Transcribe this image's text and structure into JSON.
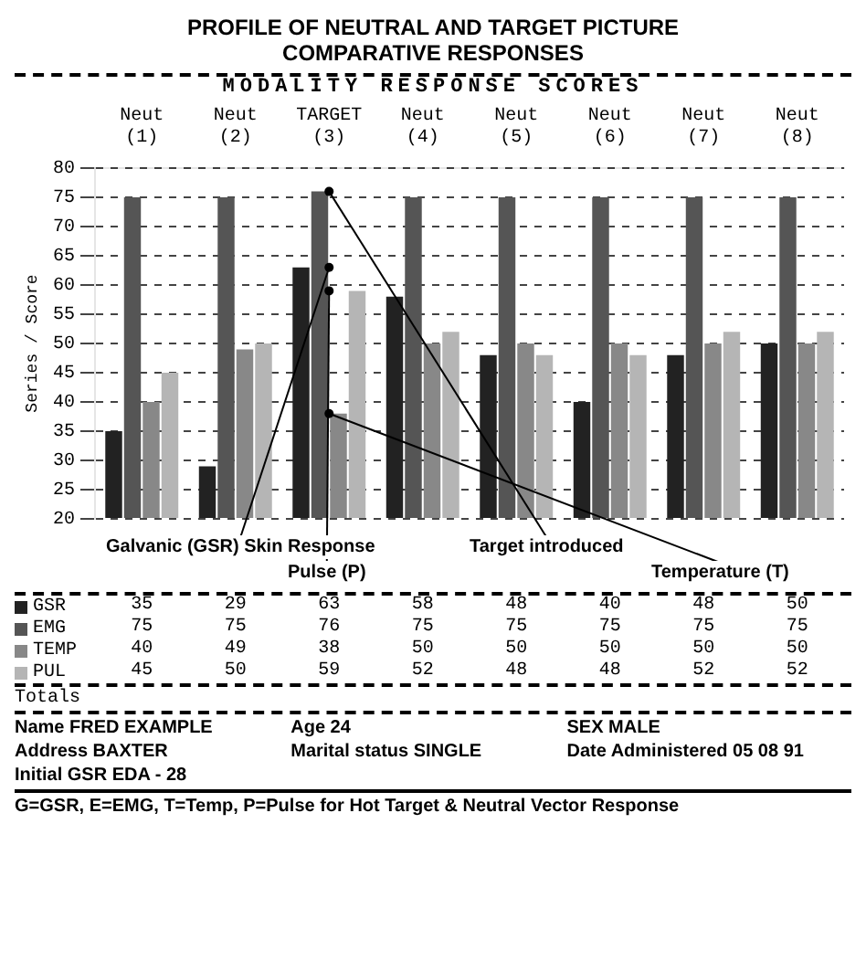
{
  "chart_data": {
    "type": "bar",
    "title": "PROFILE OF NEUTRAL AND TARGET PICTURE COMPARATIVE RESPONSES",
    "subtitle": "MODALITY RESPONSE SCORES",
    "ylabel": "Series / Score",
    "categories": [
      "Neut (1)",
      "Neut (2)",
      "TARGET (3)",
      "Neut (4)",
      "Neut (5)",
      "Neut (6)",
      "Neut (7)",
      "Neut (8)"
    ],
    "series": [
      {
        "name": "GSR",
        "color": "#222222",
        "values": [
          35,
          29,
          63,
          58,
          48,
          40,
          48,
          50
        ]
      },
      {
        "name": "EMG",
        "color": "#555555",
        "values": [
          75,
          75,
          76,
          75,
          75,
          75,
          75,
          75
        ]
      },
      {
        "name": "TEMP",
        "color": "#888888",
        "values": [
          40,
          49,
          38,
          50,
          50,
          50,
          50,
          50
        ]
      },
      {
        "name": "PUL",
        "color": "#b5b5b5",
        "values": [
          45,
          50,
          59,
          52,
          48,
          48,
          52,
          52
        ]
      }
    ],
    "ylim": [
      20,
      80
    ],
    "yticks": [
      20,
      25,
      30,
      35,
      40,
      45,
      50,
      55,
      60,
      65,
      70,
      75,
      80
    ],
    "grid": "y",
    "data_labels": true,
    "legend": "bottom left",
    "annotations": [
      {
        "text": "Galvanic (GSR) Skin Response",
        "x": "TARGET (3)",
        "y": 63
      },
      {
        "text": "Pulse (P)",
        "x": "TARGET (3)",
        "y": 59
      },
      {
        "text": "Target introduced",
        "x": "TARGET (3)",
        "y": 76
      },
      {
        "text": "Temperature (T)",
        "x": "TARGET (3)",
        "y": 38
      },
      "Totals",
      "Name FRED EXAMPLE",
      "Age 24",
      "SEX MALE",
      "Address BAXTER",
      "Marital status SINGLE",
      "Date Administered 05 08 91",
      "Initial GSR EDA - 28",
      "G=GSR, E=EMG, T=Temp, P=Pulse for Hot Target & Neutral Vector Response"
    ]
  }
}
